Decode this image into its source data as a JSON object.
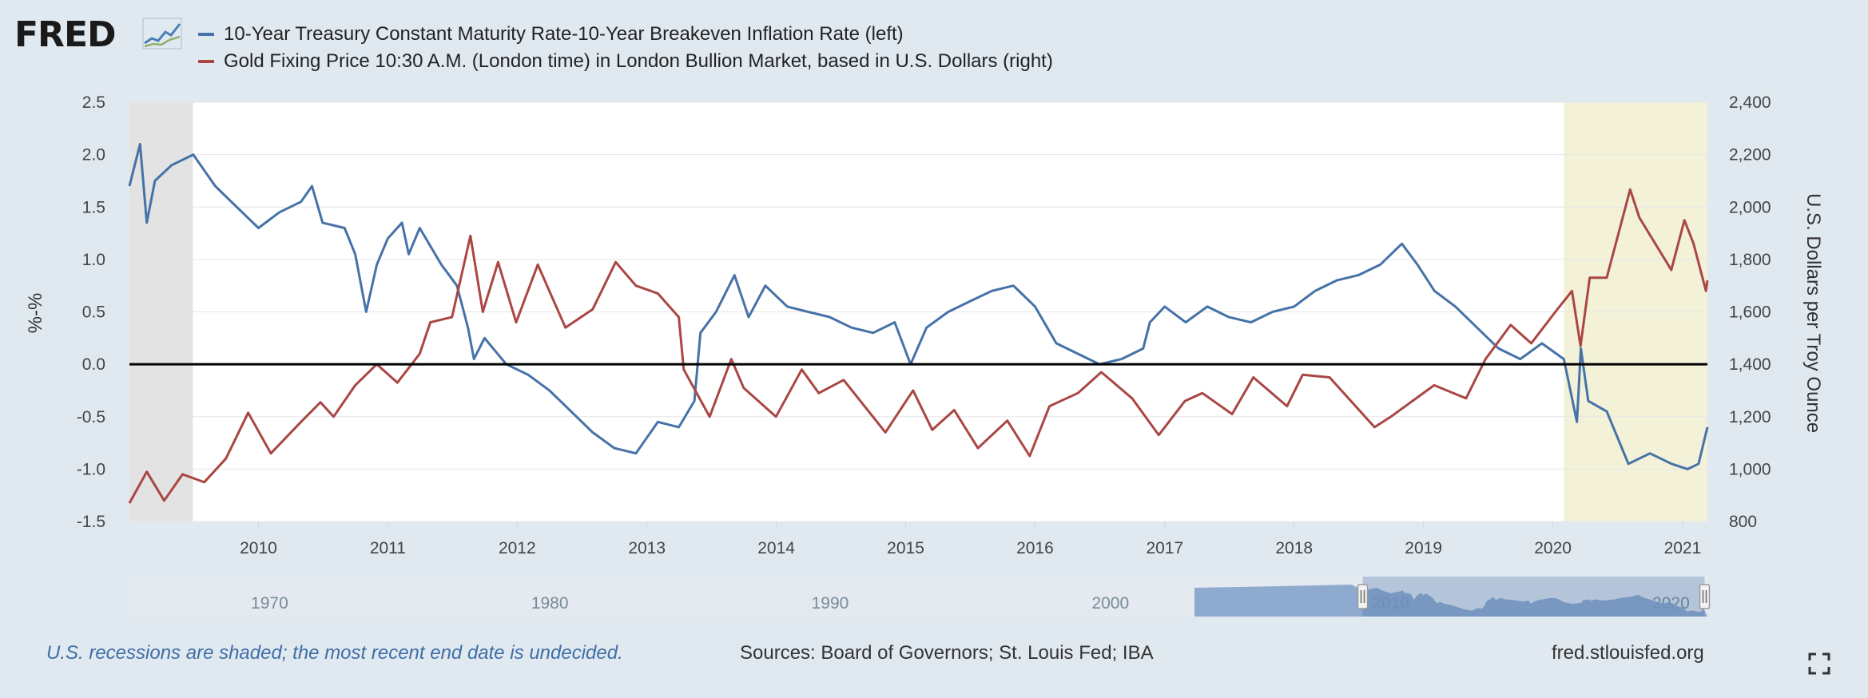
{
  "logo": {
    "text": "FRED",
    "mark": "chart-line-icon"
  },
  "legend": [
    {
      "label": "10-Year Treasury Constant Maturity Rate-10-Year Breakeven Inflation Rate (left)",
      "color": "#4572a7"
    },
    {
      "label": "Gold Fixing Price 10:30 A.M. (London time) in London Bullion Market, based in U.S. Dollars (right)",
      "color": "#aa4643"
    }
  ],
  "footer": {
    "recession_note": "U.S. recessions are shaded; the most recent end date is undecided.",
    "sources": "Sources: Board of Governors; St. Louis Fed; IBA",
    "site": "fred.stlouisfed.org"
  },
  "icons": {
    "fullscreen": "fullscreen-icon"
  },
  "chart_data": {
    "type": "line",
    "x_range": [
      "2009-01-02",
      "2021-03-12"
    ],
    "x_ticks": [
      "2010",
      "2011",
      "2012",
      "2013",
      "2014",
      "2015",
      "2016",
      "2017",
      "2018",
      "2019",
      "2020",
      "2021"
    ],
    "left_axis": {
      "label": "%-%",
      "range": [
        -1.5,
        2.5
      ],
      "ticks": [
        "2.5",
        "2.0",
        "1.5",
        "1.0",
        "0.5",
        "0.0",
        "-0.5",
        "-1.0",
        "-1.5"
      ]
    },
    "right_axis": {
      "label": "U.S. Dollars per Troy Ounce",
      "range": [
        800,
        2400
      ],
      "ticks": [
        "2,400",
        "2,200",
        "2,000",
        "1,800",
        "1,600",
        "1,400",
        "1,200",
        "1,000",
        "800"
      ]
    },
    "zero_line": 0,
    "recessions": [
      {
        "start": "2009-01-02",
        "end": "2009-06-30",
        "color": "#e3e3e3"
      },
      {
        "start": "2020-02-01",
        "end": "2021-03-12",
        "color": "#f3f1d8"
      }
    ],
    "grid": true,
    "legend_position": "top",
    "series": [
      {
        "name": "10-Year Treasury Constant Maturity Rate-10-Year Breakeven Inflation Rate (left)",
        "axis": "left",
        "color": "#4572a7",
        "points": [
          [
            "2009-01-02",
            1.7
          ],
          [
            "2009-02-01",
            2.1
          ],
          [
            "2009-02-20",
            1.35
          ],
          [
            "2009-03-15",
            1.75
          ],
          [
            "2009-05-01",
            1.9
          ],
          [
            "2009-07-01",
            2.0
          ],
          [
            "2009-09-01",
            1.7
          ],
          [
            "2009-11-01",
            1.5
          ],
          [
            "2010-01-01",
            1.3
          ],
          [
            "2010-03-01",
            1.45
          ],
          [
            "2010-05-01",
            1.55
          ],
          [
            "2010-06-01",
            1.7
          ],
          [
            "2010-07-01",
            1.35
          ],
          [
            "2010-09-01",
            1.3
          ],
          [
            "2010-10-01",
            1.05
          ],
          [
            "2010-11-01",
            0.5
          ],
          [
            "2010-12-01",
            0.95
          ],
          [
            "2011-01-01",
            1.2
          ],
          [
            "2011-02-10",
            1.35
          ],
          [
            "2011-03-01",
            1.05
          ],
          [
            "2011-04-01",
            1.3
          ],
          [
            "2011-06-01",
            0.95
          ],
          [
            "2011-07-15",
            0.75
          ],
          [
            "2011-08-15",
            0.35
          ],
          [
            "2011-09-01",
            0.05
          ],
          [
            "2011-10-01",
            0.25
          ],
          [
            "2011-12-01",
            0.0
          ],
          [
            "2012-02-01",
            -0.1
          ],
          [
            "2012-04-01",
            -0.25
          ],
          [
            "2012-06-01",
            -0.45
          ],
          [
            "2012-08-01",
            -0.65
          ],
          [
            "2012-10-01",
            -0.8
          ],
          [
            "2012-12-01",
            -0.85
          ],
          [
            "2013-02-01",
            -0.55
          ],
          [
            "2013-04-01",
            -0.6
          ],
          [
            "2013-05-15",
            -0.35
          ],
          [
            "2013-06-01",
            0.3
          ],
          [
            "2013-07-15",
            0.5
          ],
          [
            "2013-09-05",
            0.85
          ],
          [
            "2013-10-15",
            0.45
          ],
          [
            "2013-12-01",
            0.75
          ],
          [
            "2014-02-01",
            0.55
          ],
          [
            "2014-04-01",
            0.5
          ],
          [
            "2014-06-01",
            0.45
          ],
          [
            "2014-08-01",
            0.35
          ],
          [
            "2014-10-01",
            0.3
          ],
          [
            "2014-12-01",
            0.4
          ],
          [
            "2015-01-15",
            0.0
          ],
          [
            "2015-03-01",
            0.35
          ],
          [
            "2015-05-01",
            0.5
          ],
          [
            "2015-07-01",
            0.6
          ],
          [
            "2015-09-01",
            0.7
          ],
          [
            "2015-11-01",
            0.75
          ],
          [
            "2016-01-01",
            0.55
          ],
          [
            "2016-03-01",
            0.2
          ],
          [
            "2016-05-01",
            0.1
          ],
          [
            "2016-07-01",
            0.0
          ],
          [
            "2016-09-01",
            0.05
          ],
          [
            "2016-11-01",
            0.15
          ],
          [
            "2016-11-20",
            0.4
          ],
          [
            "2017-01-01",
            0.55
          ],
          [
            "2017-03-01",
            0.4
          ],
          [
            "2017-05-01",
            0.55
          ],
          [
            "2017-07-01",
            0.45
          ],
          [
            "2017-09-01",
            0.4
          ],
          [
            "2017-11-01",
            0.5
          ],
          [
            "2018-01-01",
            0.55
          ],
          [
            "2018-03-01",
            0.7
          ],
          [
            "2018-05-01",
            0.8
          ],
          [
            "2018-07-01",
            0.85
          ],
          [
            "2018-09-01",
            0.95
          ],
          [
            "2018-11-01",
            1.15
          ],
          [
            "2018-12-15",
            0.95
          ],
          [
            "2019-02-01",
            0.7
          ],
          [
            "2019-04-01",
            0.55
          ],
          [
            "2019-06-01",
            0.35
          ],
          [
            "2019-08-01",
            0.15
          ],
          [
            "2019-10-01",
            0.05
          ],
          [
            "2019-12-01",
            0.2
          ],
          [
            "2020-02-01",
            0.05
          ],
          [
            "2020-03-09",
            -0.55
          ],
          [
            "2020-03-20",
            0.15
          ],
          [
            "2020-04-10",
            -0.35
          ],
          [
            "2020-06-01",
            -0.45
          ],
          [
            "2020-08-01",
            -0.95
          ],
          [
            "2020-10-01",
            -0.85
          ],
          [
            "2020-12-01",
            -0.95
          ],
          [
            "2021-01-15",
            -1.0
          ],
          [
            "2021-02-15",
            -0.95
          ],
          [
            "2021-03-12",
            -0.6
          ]
        ]
      },
      {
        "name": "Gold Fixing Price 10:30 A.M. (London time) in London Bullion Market, based in U.S. Dollars (right)",
        "axis": "right",
        "color": "#aa4643",
        "points": [
          [
            "2009-01-02",
            870
          ],
          [
            "2009-02-20",
            990
          ],
          [
            "2009-04-10",
            880
          ],
          [
            "2009-06-01",
            980
          ],
          [
            "2009-08-01",
            950
          ],
          [
            "2009-10-01",
            1040
          ],
          [
            "2009-12-03",
            1215
          ],
          [
            "2010-02-05",
            1060
          ],
          [
            "2010-05-01",
            1180
          ],
          [
            "2010-06-25",
            1255
          ],
          [
            "2010-08-01",
            1200
          ],
          [
            "2010-10-01",
            1320
          ],
          [
            "2010-12-01",
            1400
          ],
          [
            "2011-01-28",
            1330
          ],
          [
            "2011-04-01",
            1440
          ],
          [
            "2011-05-01",
            1560
          ],
          [
            "2011-07-01",
            1580
          ],
          [
            "2011-08-22",
            1890
          ],
          [
            "2011-09-26",
            1600
          ],
          [
            "2011-11-08",
            1790
          ],
          [
            "2011-12-29",
            1560
          ],
          [
            "2012-02-28",
            1780
          ],
          [
            "2012-05-16",
            1540
          ],
          [
            "2012-08-01",
            1610
          ],
          [
            "2012-10-05",
            1790
          ],
          [
            "2012-12-01",
            1700
          ],
          [
            "2013-02-01",
            1670
          ],
          [
            "2013-04-01",
            1580
          ],
          [
            "2013-04-15",
            1380
          ],
          [
            "2013-06-27",
            1200
          ],
          [
            "2013-08-27",
            1420
          ],
          [
            "2013-10-01",
            1310
          ],
          [
            "2013-12-31",
            1200
          ],
          [
            "2014-03-14",
            1380
          ],
          [
            "2014-05-01",
            1290
          ],
          [
            "2014-07-10",
            1340
          ],
          [
            "2014-11-05",
            1140
          ],
          [
            "2015-01-22",
            1300
          ],
          [
            "2015-03-17",
            1150
          ],
          [
            "2015-05-18",
            1225
          ],
          [
            "2015-07-24",
            1080
          ],
          [
            "2015-10-15",
            1185
          ],
          [
            "2015-12-17",
            1050
          ],
          [
            "2016-02-11",
            1240
          ],
          [
            "2016-05-01",
            1290
          ],
          [
            "2016-07-06",
            1370
          ],
          [
            "2016-10-01",
            1270
          ],
          [
            "2016-12-15",
            1130
          ],
          [
            "2017-02-27",
            1260
          ],
          [
            "2017-04-17",
            1290
          ],
          [
            "2017-07-10",
            1210
          ],
          [
            "2017-09-08",
            1350
          ],
          [
            "2017-12-12",
            1240
          ],
          [
            "2018-01-25",
            1360
          ],
          [
            "2018-04-11",
            1350
          ],
          [
            "2018-08-16",
            1160
          ],
          [
            "2018-10-01",
            1200
          ],
          [
            "2019-01-31",
            1320
          ],
          [
            "2019-05-01",
            1270
          ],
          [
            "2019-06-25",
            1420
          ],
          [
            "2019-09-04",
            1550
          ],
          [
            "2019-11-01",
            1480
          ],
          [
            "2020-01-08",
            1600
          ],
          [
            "2020-02-24",
            1680
          ],
          [
            "2020-03-19",
            1470
          ],
          [
            "2020-04-14",
            1730
          ],
          [
            "2020-06-01",
            1730
          ],
          [
            "2020-08-06",
            2067
          ],
          [
            "2020-09-01",
            1960
          ],
          [
            "2020-11-30",
            1760
          ],
          [
            "2021-01-06",
            1950
          ],
          [
            "2021-02-01",
            1860
          ],
          [
            "2021-03-08",
            1680
          ],
          [
            "2021-03-12",
            1720
          ]
        ]
      }
    ]
  },
  "navigator": {
    "labels": [
      "1970",
      "1980",
      "1990",
      "2000",
      "2010",
      "2020"
    ],
    "range": [
      1965,
      2021.3
    ],
    "selection": [
      2009,
      2021.2
    ]
  }
}
